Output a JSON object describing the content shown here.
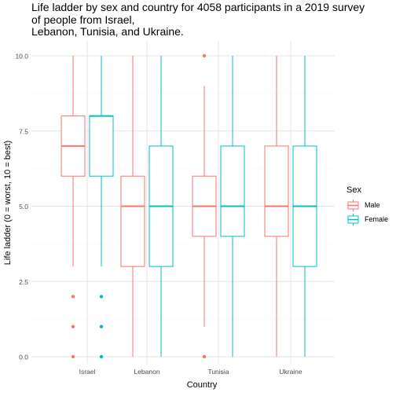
{
  "title": "Life ladder by sex and country for 4058 participants in a 2019 survey\nof people from Israel,\nLebanon, Tunisia, and Ukraine.",
  "chart_data": {
    "type": "boxplot",
    "xlabel": "Country",
    "ylabel": "Life ladder (0 = worst, 10 = best)",
    "ylim": [
      0,
      10
    ],
    "yticks": [
      "0.0",
      "2.5",
      "5.0",
      "7.5",
      "10.0"
    ],
    "categories": [
      "Israel",
      "Lebanon",
      "Tunisia",
      "Ukraine"
    ],
    "grid": true,
    "legend": {
      "title": "Sex",
      "placement": "right"
    },
    "series": [
      {
        "name": "Male",
        "color": "#F8766D",
        "boxes": [
          {
            "min": 3,
            "q1": 6,
            "median": 7,
            "q3": 8,
            "max": 10,
            "outliers": [
              0,
              1,
              2
            ]
          },
          {
            "min": 0,
            "q1": 3,
            "median": 5,
            "q3": 6,
            "max": 10,
            "outliers": []
          },
          {
            "min": 1,
            "q1": 4,
            "median": 5,
            "q3": 6,
            "max": 9,
            "outliers": [
              0,
              10
            ]
          },
          {
            "min": 0,
            "q1": 4,
            "median": 5,
            "q3": 7,
            "max": 10,
            "outliers": []
          }
        ]
      },
      {
        "name": "Female",
        "color": "#00BFC4",
        "boxes": [
          {
            "min": 3,
            "q1": 6,
            "median": 8,
            "q3": 8,
            "max": 10,
            "outliers": [
              0,
              1,
              2
            ]
          },
          {
            "min": 0,
            "q1": 3,
            "median": 5,
            "q3": 7,
            "max": 10,
            "outliers": []
          },
          {
            "min": 0,
            "q1": 4,
            "median": 5,
            "q3": 7,
            "max": 10,
            "outliers": []
          },
          {
            "min": 0,
            "q1": 3,
            "median": 5,
            "q3": 7,
            "max": 10,
            "outliers": []
          }
        ]
      }
    ]
  }
}
